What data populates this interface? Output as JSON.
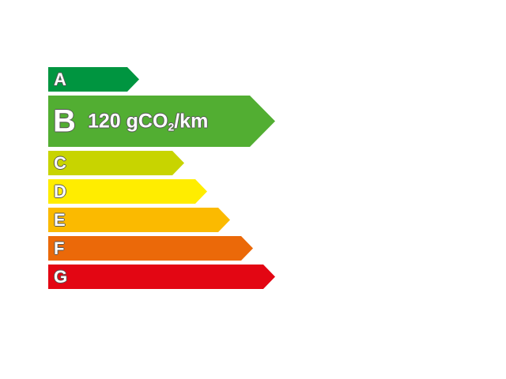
{
  "classes": [
    {
      "letter": "A",
      "color": "#009540"
    },
    {
      "letter": "B",
      "color": "#52ae32",
      "value": "120 gCO",
      "subscript": "2",
      "unit": "/km"
    },
    {
      "letter": "C",
      "color": "#c8d400"
    },
    {
      "letter": "D",
      "color": "#ffed00"
    },
    {
      "letter": "E",
      "color": "#fbba00"
    },
    {
      "letter": "F",
      "color": "#eb6909"
    },
    {
      "letter": "G",
      "color": "#e30613"
    }
  ],
  "selected_class": "B"
}
